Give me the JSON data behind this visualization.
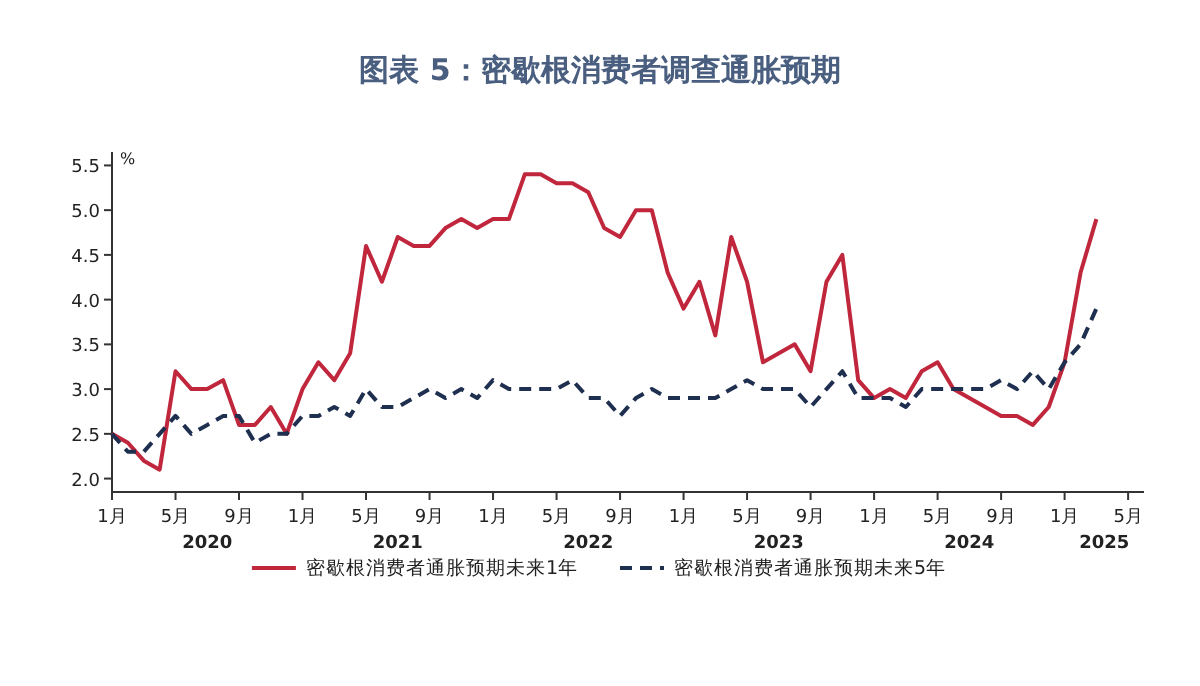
{
  "chart_data": {
    "type": "line",
    "title": "图表 5：密歇根消费者调查通胀预期",
    "ylabel": "%",
    "x": [
      "2020-01",
      "2020-02",
      "2020-03",
      "2020-04",
      "2020-05",
      "2020-06",
      "2020-07",
      "2020-08",
      "2020-09",
      "2020-10",
      "2020-11",
      "2020-12",
      "2021-01",
      "2021-02",
      "2021-03",
      "2021-04",
      "2021-05",
      "2021-06",
      "2021-07",
      "2021-08",
      "2021-09",
      "2021-10",
      "2021-11",
      "2021-12",
      "2022-01",
      "2022-02",
      "2022-03",
      "2022-04",
      "2022-05",
      "2022-06",
      "2022-07",
      "2022-08",
      "2022-09",
      "2022-10",
      "2022-11",
      "2022-12",
      "2023-01",
      "2023-02",
      "2023-03",
      "2023-04",
      "2023-05",
      "2023-06",
      "2023-07",
      "2023-08",
      "2023-09",
      "2023-10",
      "2023-11",
      "2023-12",
      "2024-01",
      "2024-02",
      "2024-03",
      "2024-04",
      "2024-05",
      "2024-06",
      "2024-07",
      "2024-08",
      "2024-09",
      "2024-10",
      "2024-11",
      "2024-12",
      "2025-01",
      "2025-02",
      "2025-03"
    ],
    "series": [
      {
        "name": "密歇根消费者通胀预期未来1年",
        "color": "#c0273c",
        "line_style": "solid",
        "values": [
          2.5,
          2.4,
          2.2,
          2.1,
          3.2,
          3.0,
          3.0,
          3.1,
          2.6,
          2.6,
          2.8,
          2.5,
          3.0,
          3.3,
          3.1,
          3.4,
          4.6,
          4.2,
          4.7,
          4.6,
          4.6,
          4.8,
          4.9,
          4.8,
          4.9,
          4.9,
          5.4,
          5.4,
          5.3,
          5.3,
          5.2,
          4.8,
          4.7,
          5.0,
          5.0,
          4.3,
          3.9,
          4.2,
          3.6,
          4.7,
          4.2,
          3.3,
          3.4,
          3.5,
          3.2,
          4.2,
          4.5,
          3.1,
          2.9,
          3.0,
          2.9,
          3.2,
          3.3,
          3.0,
          2.9,
          2.8,
          2.7,
          2.7,
          2.6,
          2.8,
          3.3,
          4.3,
          4.9
        ]
      },
      {
        "name": "密歇根消费者通胀预期未来5年",
        "color": "#1f2f4f",
        "line_style": "dashed",
        "values": [
          2.5,
          2.3,
          2.3,
          2.5,
          2.7,
          2.5,
          2.6,
          2.7,
          2.7,
          2.4,
          2.5,
          2.5,
          2.7,
          2.7,
          2.8,
          2.7,
          3.0,
          2.8,
          2.8,
          2.9,
          3.0,
          2.9,
          3.0,
          2.9,
          3.1,
          3.0,
          3.0,
          3.0,
          3.0,
          3.1,
          2.9,
          2.9,
          2.7,
          2.9,
          3.0,
          2.9,
          2.9,
          2.9,
          2.9,
          3.0,
          3.1,
          3.0,
          3.0,
          3.0,
          2.8,
          3.0,
          3.2,
          2.9,
          2.9,
          2.9,
          2.8,
          3.0,
          3.0,
          3.0,
          3.0,
          3.0,
          3.1,
          3.0,
          3.2,
          3.0,
          3.3,
          3.5,
          3.9
        ]
      }
    ],
    "xlim": [
      "2020-01",
      "2025-06"
    ],
    "ylim": [
      1.85,
      5.65
    ],
    "xticks": [
      {
        "value": "2020-01",
        "label": "1月"
      },
      {
        "value": "2020-05",
        "label": "5月"
      },
      {
        "value": "2020-09",
        "label": "9月"
      },
      {
        "value": "2021-01",
        "label": "1月"
      },
      {
        "value": "2021-05",
        "label": "5月"
      },
      {
        "value": "2021-09",
        "label": "9月"
      },
      {
        "value": "2022-01",
        "label": "1月"
      },
      {
        "value": "2022-05",
        "label": "5月"
      },
      {
        "value": "2022-09",
        "label": "9月"
      },
      {
        "value": "2023-01",
        "label": "1月"
      },
      {
        "value": "2023-05",
        "label": "5月"
      },
      {
        "value": "2023-09",
        "label": "9月"
      },
      {
        "value": "2024-01",
        "label": "1月"
      },
      {
        "value": "2024-05",
        "label": "5月"
      },
      {
        "value": "2024-09",
        "label": "9月"
      },
      {
        "value": "2025-01",
        "label": "1月"
      },
      {
        "value": "2025-05",
        "label": "5月"
      }
    ],
    "yticks": [
      {
        "value": 2,
        "label": "2.0"
      },
      2.5,
      {
        "value": 3,
        "label": "3.0"
      },
      3.5,
      {
        "value": 4,
        "label": "4.0"
      },
      4.5,
      {
        "value": 5,
        "label": "5.0"
      },
      5.5
    ],
    "annotations": [
      "2020",
      "2021",
      "2022",
      "2023",
      "2024",
      "2025"
    ],
    "legend": "bottom"
  }
}
